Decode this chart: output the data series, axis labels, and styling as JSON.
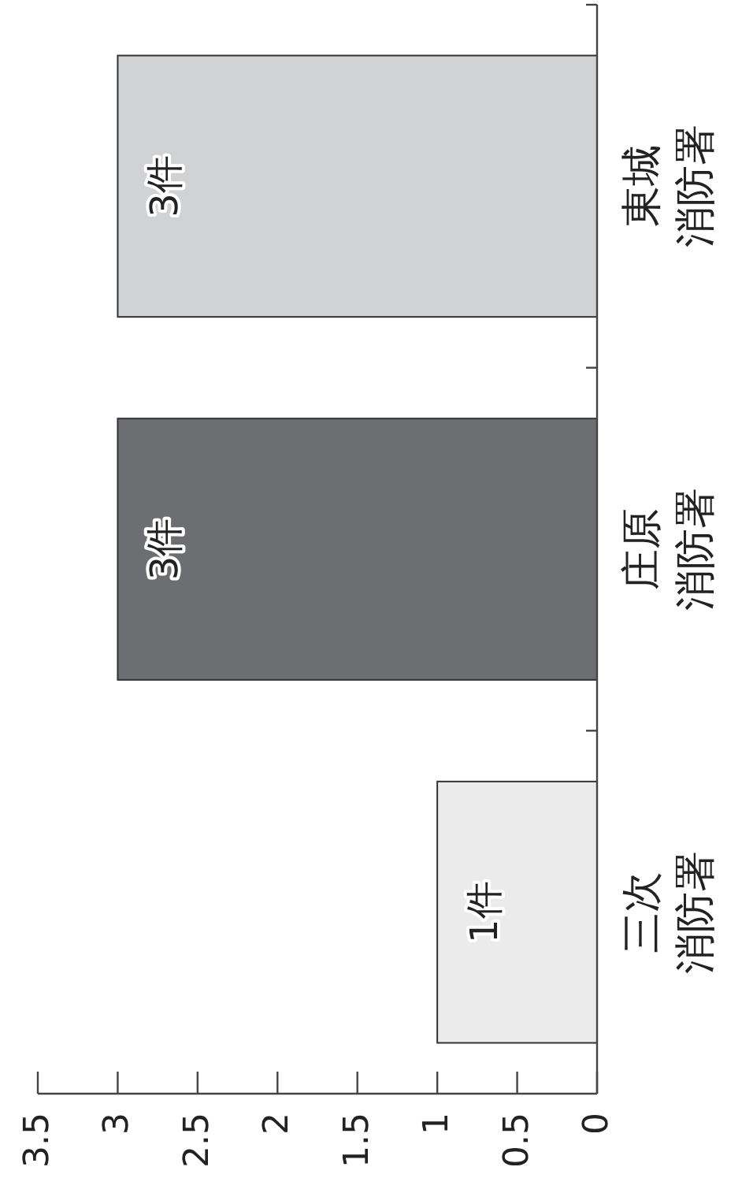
{
  "chart_data": {
    "type": "bar",
    "orientation": "horizontal",
    "categories": [
      "東城消防署",
      "庄原消防署",
      "三次消防署"
    ],
    "values": [
      3,
      3,
      1
    ],
    "colors": [
      "#d1d2d4",
      "#6d6e71",
      "#ebebeb"
    ],
    "value_labels": [
      "3件",
      "3件",
      "1件"
    ],
    "xlim": [
      3.5,
      0
    ],
    "xticks": [
      0,
      0.5,
      1,
      1.5,
      2,
      2.5,
      3,
      3.5
    ],
    "grid": false
  }
}
